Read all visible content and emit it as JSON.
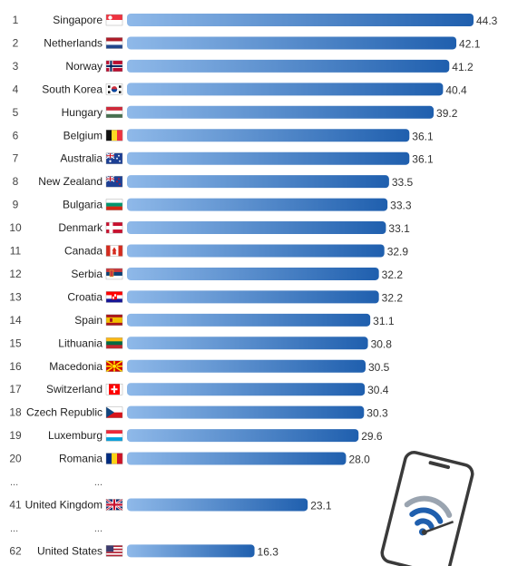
{
  "colors": {
    "bar_start": "#8fb9e9",
    "bar_end": "#1f5fae",
    "text": "#222222"
  },
  "chart_data": {
    "type": "bar",
    "orientation": "horizontal",
    "xlim": [
      0,
      44.3
    ],
    "rows": [
      {
        "rank": "1",
        "country": "Singapore",
        "flag": "flag-singapore",
        "value": 44.3
      },
      {
        "rank": "2",
        "country": "Netherlands",
        "flag": "flag-netherlands",
        "value": 42.1
      },
      {
        "rank": "3",
        "country": "Norway",
        "flag": "flag-norway",
        "value": 41.2
      },
      {
        "rank": "4",
        "country": "South Korea",
        "flag": "flag-south-korea",
        "value": 40.4
      },
      {
        "rank": "5",
        "country": "Hungary",
        "flag": "flag-hungary",
        "value": 39.2
      },
      {
        "rank": "6",
        "country": "Belgium",
        "flag": "flag-belgium",
        "value": 36.1
      },
      {
        "rank": "7",
        "country": "Australia",
        "flag": "flag-australia",
        "value": 36.1
      },
      {
        "rank": "8",
        "country": "New Zealand",
        "flag": "flag-new-zealand",
        "value": 33.5
      },
      {
        "rank": "9",
        "country": "Bulgaria",
        "flag": "flag-bulgaria",
        "value": 33.3
      },
      {
        "rank": "10",
        "country": "Denmark",
        "flag": "flag-denmark",
        "value": 33.1
      },
      {
        "rank": "11",
        "country": "Canada",
        "flag": "flag-canada",
        "value": 32.9
      },
      {
        "rank": "12",
        "country": "Serbia",
        "flag": "flag-serbia",
        "value": 32.2
      },
      {
        "rank": "13",
        "country": "Croatia",
        "flag": "flag-croatia",
        "value": 32.2
      },
      {
        "rank": "14",
        "country": "Spain",
        "flag": "flag-spain",
        "value": 31.1
      },
      {
        "rank": "15",
        "country": "Lithuania",
        "flag": "flag-lithuania",
        "value": 30.8
      },
      {
        "rank": "16",
        "country": "Macedonia",
        "flag": "flag-macedonia",
        "value": 30.5
      },
      {
        "rank": "17",
        "country": "Switzerland",
        "flag": "flag-switzerland",
        "value": 30.4
      },
      {
        "rank": "18",
        "country": "Czech Republic",
        "flag": "flag-czech-republic",
        "value": 30.3
      },
      {
        "rank": "19",
        "country": "Luxemburg",
        "flag": "flag-luxemburg",
        "value": 29.6
      },
      {
        "rank": "20",
        "country": "Romania",
        "flag": "flag-romania",
        "value": 28.0
      },
      {
        "ellipsis": true,
        "rank": "...",
        "country": "..."
      },
      {
        "rank": "41",
        "country": "United Kingdom",
        "flag": "flag-united-kingdom",
        "value": 23.1
      },
      {
        "ellipsis": true,
        "rank": "...",
        "country": "..."
      },
      {
        "rank": "62",
        "country": "United States",
        "flag": "flag-united-states",
        "value": 16.3
      }
    ]
  },
  "decoration": {
    "icon": "smartphone-wifi-icon"
  }
}
